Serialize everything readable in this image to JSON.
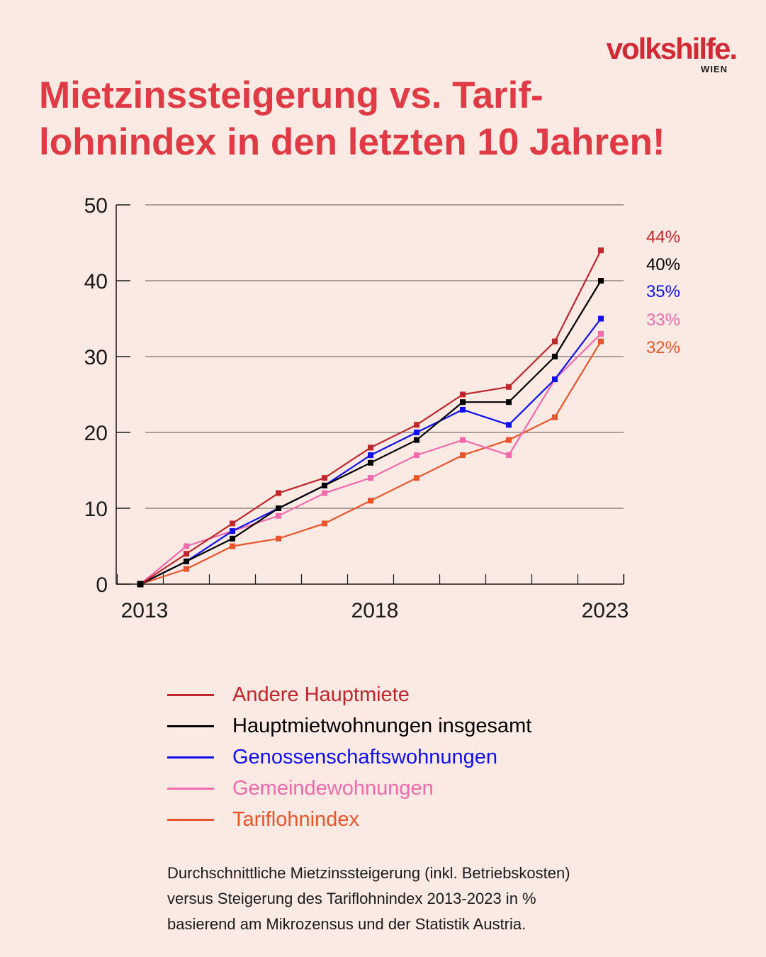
{
  "logo": {
    "brand": "volkshilfe.",
    "sub": "WIEN"
  },
  "title": {
    "line1": "Mietzinssteigerung vs. Tarif-",
    "line2": "lohnindex in den letzten 10 Jahren!"
  },
  "colors": {
    "background": "#fbe9e4",
    "title": "#e03a44",
    "grid": "#555555"
  },
  "chart_data": {
    "type": "line",
    "x": [
      2013,
      2014,
      2015,
      2016,
      2017,
      2018,
      2019,
      2020,
      2021,
      2022,
      2023
    ],
    "xticks": [
      "2013",
      "2018",
      "2023"
    ],
    "yticks": [
      "0",
      "10",
      "20",
      "30",
      "40",
      "50"
    ],
    "ylim": [
      0,
      50
    ],
    "grid": true,
    "series": [
      {
        "name": "Andere Hauptmiete",
        "color": "#c0272d",
        "end_label": "44%",
        "values": [
          0,
          4,
          8,
          12,
          14,
          18,
          21,
          25,
          26,
          32,
          44
        ]
      },
      {
        "name": "Hauptmietwohnungen insgesamt",
        "color": "#000000",
        "end_label": "40%",
        "values": [
          0,
          3,
          6,
          10,
          13,
          16,
          19,
          24,
          24,
          30,
          40
        ]
      },
      {
        "name": "Genossenschaftswohnungen",
        "color": "#1010ee",
        "end_label": "35%",
        "values": [
          0,
          3,
          7,
          10,
          13,
          17,
          20,
          23,
          21,
          27,
          35
        ]
      },
      {
        "name": "Gemeindewohnungen",
        "color": "#f06aae",
        "end_label": "33%",
        "values": [
          0,
          5,
          7,
          9,
          12,
          14,
          17,
          19,
          17,
          27,
          33
        ]
      },
      {
        "name": "Tariflohnindex",
        "color": "#e8552a",
        "end_label": "32%",
        "values": [
          0,
          2,
          5,
          6,
          8,
          11,
          14,
          17,
          19,
          22,
          32
        ]
      }
    ]
  },
  "source": {
    "line1": "Durchschnittliche Mietzinssteigerung (inkl. Betriebskosten)",
    "line2": "versus Steigerung des Tariflohnindex 2013-2023 in %",
    "line3": "basierend am Mikrozensus und der Statistik Austria."
  }
}
